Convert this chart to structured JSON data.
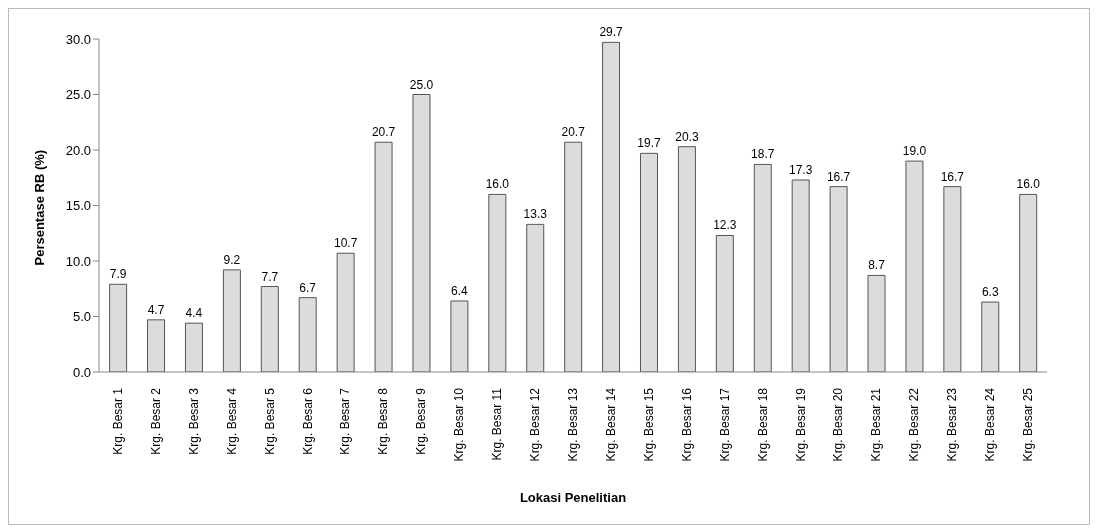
{
  "chart_data": {
    "type": "bar",
    "xlabel": "Lokasi Penelitian",
    "ylabel": "Persentase RB (%)",
    "categories": [
      "Krg. Besar 1",
      "Krg. Besar 2",
      "Krg. Besar 3",
      "Krg. Besar 4",
      "Krg. Besar 5",
      "Krg. Besar 6",
      "Krg. Besar 7",
      "Krg. Besar 8",
      "Krg. Besar 9",
      "Krg. Besar 10",
      "Krg. Besar 11",
      "Krg. Besar 12",
      "Krg. Besar 13",
      "Krg. Besar 14",
      "Krg. Besar 15",
      "Krg. Besar 16",
      "Krg. Besar 17",
      "Krg. Besar 18",
      "Krg. Besar 19",
      "Krg. Besar 20",
      "Krg. Besar 21",
      "Krg. Besar 22",
      "Krg. Besar 23",
      "Krg. Besar 24",
      "Krg. Besar 25"
    ],
    "values": [
      7.9,
      4.7,
      4.4,
      9.2,
      7.7,
      6.7,
      10.7,
      20.7,
      25.0,
      6.4,
      16.0,
      13.3,
      20.7,
      29.7,
      19.7,
      20.3,
      12.3,
      18.7,
      17.3,
      16.7,
      8.7,
      19.0,
      16.7,
      6.3,
      16.0
    ],
    "value_labels": [
      "7.9",
      "4.7",
      "4.4",
      "9.2",
      "7.7",
      "6.7",
      "10.7",
      "20.7",
      "25.0",
      "6.4",
      "16.0",
      "13.3",
      "20.7",
      "29.7",
      "19.7",
      "20.3",
      "12.3",
      "18.7",
      "17.3",
      "16.7",
      "8.7",
      "19.0",
      "16.7",
      "6.3",
      "16.0"
    ],
    "color": "#dcdcdc",
    "ylim": [
      0,
      30
    ],
    "yticks": [
      {
        "value": 0,
        "label": "0.0"
      },
      {
        "value": 5,
        "label": "5.0"
      },
      {
        "value": 10,
        "label": "10.0"
      },
      {
        "value": 15,
        "label": "15.0"
      },
      {
        "value": 20,
        "label": "20.0"
      },
      {
        "value": 25,
        "label": "25.0"
      },
      {
        "value": 30,
        "label": "30.0"
      }
    ],
    "grid": false,
    "legend": false
  }
}
